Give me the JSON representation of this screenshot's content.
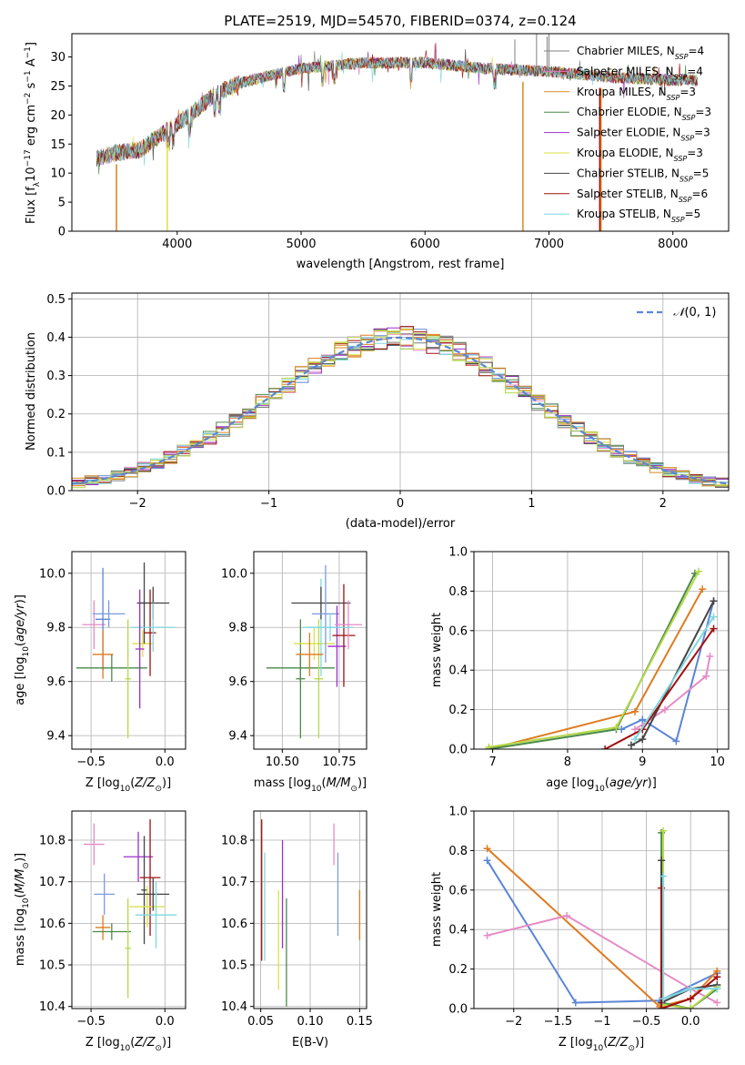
{
  "figure": {
    "title": "PLATE=2519, MJD=54570, FIBERID=0374, z=0.124"
  },
  "colors": {
    "Chabrier MILES": "#7f7f7f",
    "Salpeter MILES": "#e377c2",
    "Kroupa MILES": "#d68a1e",
    "Chabrier ELODIE": "#4a8a4a",
    "Salpeter ELODIE": "#9b30c8",
    "Kroupa ELODIE": "#dde04a",
    "Chabrier STELIB": "#444444",
    "Salpeter STELIB": "#a01010",
    "Kroupa STELIB": "#7fd8e0",
    "blue": "#5b85d6",
    "orange": "#e07a1e",
    "pink": "#e58bc7",
    "green": "#4a8a4a",
    "yellowgreen": "#b5d84a"
  },
  "chart_data": [
    {
      "type": "line",
      "panel": "spectrum",
      "title": "PLATE=2519, MJD=54570, FIBERID=0374, z=0.124",
      "xlabel": "wavelength [Angstrom, rest frame]",
      "ylabel": "Flux [f_λ 10^-17 erg cm^-2 s^-1 A^-1]",
      "xlim": [
        3150,
        8450
      ],
      "ylim": [
        0,
        34
      ],
      "xticks": [
        4000,
        5000,
        6000,
        7000,
        8000
      ],
      "yticks": [
        0,
        5,
        10,
        15,
        20,
        25,
        30
      ],
      "x_range_data": [
        3350,
        8200
      ],
      "series": [
        {
          "name": "Chabrier MILES, N_SSP=4",
          "color": "#7f7f7f",
          "values_anchor": [
            [
              3350,
              12.5
            ],
            [
              3500,
              13.5
            ],
            [
              3700,
              14
            ],
            [
              3900,
              17
            ],
            [
              4100,
              20
            ],
            [
              4300,
              23.5
            ],
            [
              4500,
              25.5
            ],
            [
              4800,
              27
            ],
            [
              5000,
              28
            ],
            [
              5500,
              29
            ],
            [
              6000,
              29
            ],
            [
              6500,
              28
            ],
            [
              7000,
              27.5
            ],
            [
              7500,
              26.5
            ],
            [
              8000,
              26
            ],
            [
              8200,
              26
            ]
          ]
        },
        {
          "name": "Salpeter MILES, N_SSP=4",
          "color": "#e377c2"
        },
        {
          "name": "Kroupa MILES, N_SSP=3",
          "color": "#d68a1e"
        },
        {
          "name": "Chabrier ELODIE, N_SSP=3",
          "color": "#4a8a4a"
        },
        {
          "name": "Salpeter ELODIE, N_SSP=3",
          "color": "#9b30c8"
        },
        {
          "name": "Kroupa ELODIE, N_SSP=3",
          "color": "#dde04a"
        },
        {
          "name": "Chabrier STELIB, N_SSP=5",
          "color": "#444444"
        },
        {
          "name": "Salpeter STELIB, N_SSP=6",
          "color": "#a01010"
        },
        {
          "name": "Kroupa STELIB, N_SSP=5",
          "color": "#7fd8e0"
        }
      ]
    },
    {
      "type": "line",
      "panel": "residuals",
      "xlabel": "(data-model)/error",
      "ylabel": "Normed distribution",
      "xlim": [
        -2.5,
        2.5
      ],
      "ylim": [
        0,
        0.515
      ],
      "xticks": [
        -2,
        -1,
        0,
        1,
        2
      ],
      "yticks": [
        0.0,
        0.1,
        0.2,
        0.3,
        0.4,
        0.5
      ],
      "reference": {
        "name": "N(0,1)",
        "color": "#5b85d6",
        "style": "dashed"
      },
      "bins": {
        "start": -2.5,
        "width": 0.1,
        "count": 50
      },
      "grid": true,
      "legend": "top-right"
    },
    {
      "type": "scatter",
      "panel": "age_vs_Z",
      "xlabel": "Z [log10(Z/Z⊙)]",
      "ylabel": "age [log10(age/yr)]",
      "xlim": [
        -0.63,
        0.14
      ],
      "ylim": [
        9.35,
        10.08
      ],
      "xticks": [
        -0.5,
        0.0
      ],
      "yticks": [
        9.4,
        9.6,
        9.8,
        10.0
      ],
      "points": [
        {
          "x": -0.48,
          "y": 9.81,
          "xerr": 0.08,
          "yerr": 0.09,
          "color": "#e58bc7"
        },
        {
          "x": -0.42,
          "y": 9.83,
          "xerr": 0.05,
          "yerr": 0.19,
          "color": "#5b85d6"
        },
        {
          "x": -0.38,
          "y": 9.85,
          "xerr": 0.11,
          "yerr": 0.05,
          "color": "#7b9ae0"
        },
        {
          "x": -0.42,
          "y": 9.7,
          "xerr": 0.07,
          "yerr": 0.09,
          "color": "#e07a1e"
        },
        {
          "x": -0.36,
          "y": 9.65,
          "xerr": 0.24,
          "yerr": 0.05,
          "color": "#4a8a4a"
        },
        {
          "x": -0.25,
          "y": 9.61,
          "xerr": 0.02,
          "yerr": 0.22,
          "color": "#b5d84a"
        },
        {
          "x": -0.15,
          "y": 9.74,
          "xerr": 0.07,
          "yerr": 0.05,
          "color": "#dde04a"
        },
        {
          "x": -0.14,
          "y": 9.89,
          "xerr": 0.04,
          "yerr": 0.15,
          "color": "#444444"
        },
        {
          "x": -0.08,
          "y": 9.89,
          "xerr": 0.11,
          "yerr": 0.06,
          "color": "#444444"
        },
        {
          "x": -0.1,
          "y": 9.78,
          "xerr": 0.04,
          "yerr": 0.16,
          "color": "#a01010"
        },
        {
          "x": -0.08,
          "y": 9.8,
          "xerr": 0.15,
          "yerr": 0.09,
          "color": "#7fd8e0"
        },
        {
          "x": -0.17,
          "y": 9.72,
          "xerr": 0.03,
          "yerr": 0.22,
          "color": "#9b30c8"
        }
      ]
    },
    {
      "type": "scatter",
      "panel": "age_vs_mass",
      "xlabel": "mass [log10(M/M⊙)]",
      "ylabel": "",
      "xlim": [
        10.375,
        10.87
      ],
      "ylim": [
        9.35,
        10.08
      ],
      "xticks": [
        10.5,
        10.75
      ],
      "yticks": [
        9.4,
        9.6,
        9.8,
        10.0
      ],
      "points": [
        {
          "x": 10.58,
          "y": 9.65,
          "xerr": 0.15,
          "yerr": 0.05,
          "color": "#4a8a4a"
        },
        {
          "x": 10.58,
          "y": 9.61,
          "xerr": 0.02,
          "yerr": 0.22,
          "color": "#4a8a4a"
        },
        {
          "x": 10.64,
          "y": 9.74,
          "xerr": 0.09,
          "yerr": 0.06,
          "color": "#dde04a"
        },
        {
          "x": 10.66,
          "y": 9.61,
          "xerr": 0.02,
          "yerr": 0.22,
          "color": "#b5d84a"
        },
        {
          "x": 10.67,
          "y": 9.8,
          "xerr": 0.08,
          "yerr": 0.18,
          "color": "#7fd8e0"
        },
        {
          "x": 10.67,
          "y": 9.89,
          "xerr": 0.13,
          "yerr": 0.06,
          "color": "#444444"
        },
        {
          "x": 10.69,
          "y": 9.85,
          "xerr": 0.06,
          "yerr": 0.18,
          "color": "#7b9ae0"
        },
        {
          "x": 10.62,
          "y": 9.7,
          "xerr": 0.06,
          "yerr": 0.08,
          "color": "#e07a1e"
        },
        {
          "x": 10.74,
          "y": 9.73,
          "xerr": 0.04,
          "yerr": 0.15,
          "color": "#9b30c8"
        },
        {
          "x": 10.77,
          "y": 9.77,
          "xerr": 0.05,
          "yerr": 0.19,
          "color": "#a01010"
        },
        {
          "x": 10.79,
          "y": 9.81,
          "xerr": 0.06,
          "yerr": 0.09,
          "color": "#e58bc7"
        },
        {
          "x": 10.71,
          "y": 9.8,
          "xerr": 0.1,
          "yerr": 0.05,
          "color": "#7fd8e0"
        }
      ]
    },
    {
      "type": "line",
      "panel": "massweight_vs_age",
      "xlabel": "age [log10(age/yr)]",
      "ylabel": "mass weight",
      "xlim": [
        6.75,
        10.15
      ],
      "ylim": [
        0,
        1.0
      ],
      "xticks": [
        7,
        8,
        9,
        10
      ],
      "yticks": [
        0.0,
        0.2,
        0.4,
        0.6,
        0.8,
        1.0
      ],
      "series": [
        {
          "color": "#5b85d6",
          "x": [
            8.72,
            9.0,
            9.45,
            9.95
          ],
          "y": [
            0.1,
            0.15,
            0.04,
            0.75
          ]
        },
        {
          "color": "#e07a1e",
          "x": [
            6.95,
            8.9,
            9.8
          ],
          "y": [
            0.0,
            0.19,
            0.81
          ]
        },
        {
          "color": "#e58bc7",
          "x": [
            8.9,
            9.3,
            9.85,
            9.9
          ],
          "y": [
            0.1,
            0.2,
            0.37,
            0.47
          ]
        },
        {
          "color": "#4a8a4a",
          "x": [
            6.95,
            8.65,
            9.7
          ],
          "y": [
            0.0,
            0.1,
            0.89
          ]
        },
        {
          "color": "#b5d84a",
          "x": [
            6.95,
            8.65,
            9.75
          ],
          "y": [
            0.01,
            0.11,
            0.9
          ]
        },
        {
          "color": "#444444",
          "x": [
            8.85,
            9.0,
            9.95
          ],
          "y": [
            0.02,
            0.05,
            0.75
          ]
        },
        {
          "color": "#a01010",
          "x": [
            8.5,
            9.0,
            9.95
          ],
          "y": [
            0.0,
            0.1,
            0.61
          ]
        },
        {
          "color": "#7fd8e0",
          "x": [
            8.9,
            9.95
          ],
          "y": [
            0.05,
            0.67
          ]
        }
      ]
    },
    {
      "type": "scatter",
      "panel": "mass_vs_Z",
      "xlabel": "Z [log10(Z/Z⊙)]",
      "ylabel": "mass [log10(M/M⊙)]",
      "xlim": [
        -0.63,
        0.14
      ],
      "ylim": [
        10.395,
        10.87
      ],
      "xticks": [
        -0.5,
        0.0
      ],
      "yticks": [
        10.4,
        10.5,
        10.6,
        10.7,
        10.8
      ],
      "points": [
        {
          "x": -0.48,
          "y": 10.79,
          "xerr": 0.07,
          "yerr": 0.05,
          "color": "#e58bc7"
        },
        {
          "x": -0.41,
          "y": 10.67,
          "xerr": 0.07,
          "yerr": 0.05,
          "color": "#7b9ae0"
        },
        {
          "x": -0.42,
          "y": 10.59,
          "xerr": 0.05,
          "yerr": 0.03,
          "color": "#e07a1e"
        },
        {
          "x": -0.36,
          "y": 10.58,
          "xerr": 0.13,
          "yerr": 0.02,
          "color": "#4a8a4a"
        },
        {
          "x": -0.25,
          "y": 10.54,
          "xerr": 0.02,
          "yerr": 0.12,
          "color": "#b5d84a"
        },
        {
          "x": -0.18,
          "y": 10.76,
          "xerr": 0.1,
          "yerr": 0.06,
          "color": "#9b30c8"
        },
        {
          "x": -0.14,
          "y": 10.68,
          "xerr": 0.02,
          "yerr": 0.13,
          "color": "#444444"
        },
        {
          "x": -0.1,
          "y": 10.71,
          "xerr": 0.07,
          "yerr": 0.14,
          "color": "#a01010"
        },
        {
          "x": -0.12,
          "y": 10.64,
          "xerr": 0.12,
          "yerr": 0.05,
          "color": "#dde04a"
        },
        {
          "x": -0.08,
          "y": 10.67,
          "xerr": 0.11,
          "yerr": 0.04,
          "color": "#444444"
        },
        {
          "x": -0.06,
          "y": 10.62,
          "xerr": 0.14,
          "yerr": 0.08,
          "color": "#7fd8e0"
        }
      ]
    },
    {
      "type": "scatter",
      "panel": "mass_vs_ebv",
      "xlabel": "E(B-V)",
      "ylabel": "",
      "xlim": [
        0.043,
        0.157
      ],
      "ylim": [
        10.395,
        10.87
      ],
      "xticks": [
        0.05,
        0.1,
        0.15
      ],
      "yticks": [
        10.4,
        10.5,
        10.6,
        10.7,
        10.8
      ],
      "points": [
        {
          "x": 0.051,
          "y": 10.68,
          "yerr": 0.17,
          "color": "#a01010"
        },
        {
          "x": 0.054,
          "y": 10.64,
          "yerr": 0.13,
          "color": "#7fd8e0"
        },
        {
          "x": 0.068,
          "y": 10.56,
          "yerr": 0.12,
          "color": "#dde04a"
        },
        {
          "x": 0.072,
          "y": 10.67,
          "yerr": 0.13,
          "color": "#9b30c8"
        },
        {
          "x": 0.076,
          "y": 10.53,
          "yerr": 0.13,
          "color": "#4a8a4a"
        },
        {
          "x": 0.124,
          "y": 10.79,
          "yerr": 0.05,
          "color": "#e58bc7"
        },
        {
          "x": 0.128,
          "y": 10.67,
          "yerr": 0.1,
          "color": "#7b9ae0"
        },
        {
          "x": 0.15,
          "y": 10.62,
          "yerr": 0.06,
          "color": "#e07a1e"
        }
      ]
    },
    {
      "type": "line",
      "panel": "massweight_vs_Z",
      "xlabel": "Z [log10(Z/Z⊙)]",
      "ylabel": "mass weight",
      "xlim": [
        -2.45,
        0.43
      ],
      "ylim": [
        0,
        1.0
      ],
      "xticks": [
        -2.0,
        -1.5,
        -1.0,
        -0.5,
        0.0
      ],
      "yticks": [
        0.0,
        0.2,
        0.4,
        0.6,
        0.8,
        1.0
      ],
      "series": [
        {
          "color": "#5b85d6",
          "x": [
            -2.3,
            -1.3,
            -0.35,
            0.3
          ],
          "y": [
            0.75,
            0.03,
            0.04,
            0.18
          ]
        },
        {
          "color": "#e07a1e",
          "x": [
            -2.3,
            -0.35,
            0.0,
            0.3
          ],
          "y": [
            0.81,
            0.01,
            0.05,
            0.19
          ]
        },
        {
          "color": "#e58bc7",
          "x": [
            -2.3,
            -1.4,
            0.0,
            0.3
          ],
          "y": [
            0.37,
            0.47,
            0.1,
            0.03
          ]
        },
        {
          "color": "#4a8a4a",
          "x": [
            -0.33,
            -0.33,
            0.0,
            0.3
          ],
          "y": [
            0.89,
            0.03,
            0.0,
            0.1
          ]
        },
        {
          "color": "#b5d84a",
          "x": [
            -0.31,
            -0.31,
            0.0,
            0.3
          ],
          "y": [
            0.9,
            0.02,
            0.0,
            0.11
          ]
        },
        {
          "color": "#444444",
          "x": [
            -0.33,
            -0.33,
            0.0,
            0.3
          ],
          "y": [
            0.75,
            0.03,
            0.1,
            0.12
          ]
        },
        {
          "color": "#a01010",
          "x": [
            -0.33,
            -0.33,
            0.0,
            0.3
          ],
          "y": [
            0.61,
            0.0,
            0.05,
            0.16
          ]
        },
        {
          "color": "#7fd8e0",
          "x": [
            -0.31,
            -0.31,
            0.0,
            0.3
          ],
          "y": [
            0.67,
            0.05,
            0.1,
            0.1
          ]
        }
      ]
    }
  ]
}
